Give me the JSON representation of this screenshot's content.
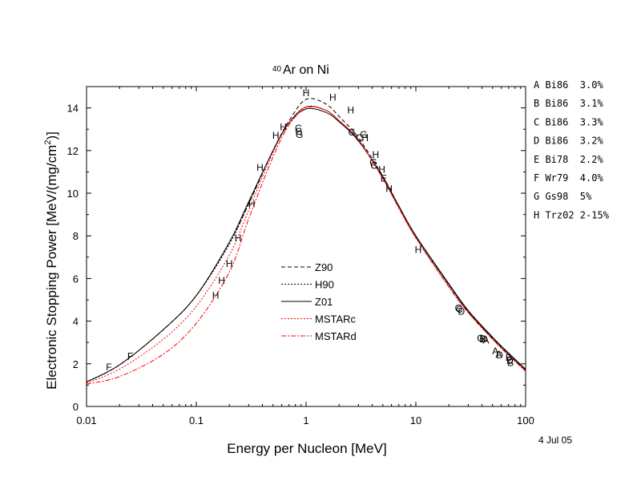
{
  "chart_data": {
    "type": "line",
    "title_sup": "40",
    "title_main": "Ar on Ni",
    "xlabel": "Energy per Nucleon [MeV]",
    "ylabel_main": "Electronic Stopping Power [MeV/(mg/cm",
    "ylabel_sup": "2",
    "ylabel_end": ")]",
    "date": "4 Jul 05",
    "xscale": "log",
    "xlim": [
      0.01,
      100
    ],
    "ylim": [
      0,
      15
    ],
    "x_ticks": [
      0.01,
      0.1,
      1,
      10,
      100
    ],
    "x_tick_labels": [
      "0.01",
      "0.1",
      "1",
      "10",
      "100"
    ],
    "y_ticks": [
      0,
      2,
      4,
      6,
      8,
      10,
      12,
      14
    ],
    "y_tick_labels": [
      "0",
      "2",
      "4",
      "6",
      "8",
      "10",
      "12",
      "14"
    ],
    "legend_position": "center-left",
    "series": [
      {
        "name": "Z90",
        "color": "#000000",
        "dash": "5,3",
        "points": [
          [
            0.01,
            1.15
          ],
          [
            0.02,
            1.95
          ],
          [
            0.05,
            3.6
          ],
          [
            0.1,
            5.2
          ],
          [
            0.2,
            7.7
          ],
          [
            0.3,
            9.5
          ],
          [
            0.5,
            12.0
          ],
          [
            0.7,
            13.4
          ],
          [
            1.0,
            14.4
          ],
          [
            1.5,
            14.2
          ],
          [
            2.0,
            13.6
          ],
          [
            3.0,
            12.6
          ],
          [
            5.0,
            10.8
          ],
          [
            7.0,
            9.4
          ],
          [
            10.0,
            8.0
          ],
          [
            20.0,
            5.7
          ],
          [
            30.0,
            4.45
          ],
          [
            50.0,
            3.2
          ],
          [
            70.0,
            2.45
          ],
          [
            100.0,
            1.7
          ]
        ]
      },
      {
        "name": "H90",
        "color": "#000000",
        "dash": "2,2",
        "points": [
          [
            0.01,
            1.15
          ],
          [
            0.02,
            1.95
          ],
          [
            0.05,
            3.6
          ],
          [
            0.1,
            5.2
          ],
          [
            0.2,
            7.6
          ],
          [
            0.3,
            9.5
          ],
          [
            0.5,
            12.0
          ],
          [
            0.7,
            13.3
          ],
          [
            1.0,
            14.05
          ],
          [
            1.5,
            13.9
          ],
          [
            2.0,
            13.4
          ],
          [
            3.0,
            12.5
          ],
          [
            5.0,
            10.7
          ],
          [
            7.0,
            9.35
          ],
          [
            10.0,
            7.95
          ],
          [
            20.0,
            5.7
          ],
          [
            30.0,
            4.45
          ],
          [
            50.0,
            3.2
          ],
          [
            70.0,
            2.45
          ],
          [
            100.0,
            1.7
          ]
        ]
      },
      {
        "name": "Z01",
        "color": "#000000",
        "dash": "",
        "points": [
          [
            0.01,
            1.15
          ],
          [
            0.02,
            1.95
          ],
          [
            0.05,
            3.6
          ],
          [
            0.1,
            5.2
          ],
          [
            0.2,
            7.7
          ],
          [
            0.3,
            9.6
          ],
          [
            0.5,
            12.0
          ],
          [
            0.7,
            13.3
          ],
          [
            1.0,
            13.95
          ],
          [
            1.5,
            13.8
          ],
          [
            2.0,
            13.35
          ],
          [
            3.0,
            12.45
          ],
          [
            5.0,
            10.75
          ],
          [
            7.0,
            9.4
          ],
          [
            10.0,
            8.0
          ],
          [
            20.0,
            5.75
          ],
          [
            30.0,
            4.5
          ],
          [
            50.0,
            3.25
          ],
          [
            70.0,
            2.5
          ],
          [
            100.0,
            1.75
          ]
        ]
      },
      {
        "name": "MSTARc",
        "color": "#ff0000",
        "dash": "2,2",
        "points": [
          [
            0.01,
            1.1
          ],
          [
            0.02,
            1.75
          ],
          [
            0.05,
            3.15
          ],
          [
            0.1,
            4.7
          ],
          [
            0.2,
            7.1
          ],
          [
            0.3,
            9.2
          ],
          [
            0.5,
            11.9
          ],
          [
            0.7,
            13.3
          ],
          [
            1.0,
            14.05
          ],
          [
            1.5,
            13.9
          ],
          [
            2.0,
            13.4
          ],
          [
            3.0,
            12.5
          ],
          [
            5.0,
            10.7
          ],
          [
            7.0,
            9.3
          ],
          [
            10.0,
            7.9
          ],
          [
            20.0,
            5.6
          ],
          [
            30.0,
            4.4
          ],
          [
            50.0,
            3.15
          ],
          [
            70.0,
            2.4
          ],
          [
            100.0,
            1.65
          ]
        ]
      },
      {
        "name": "MSTARd",
        "color": "#ff0000",
        "dash": "6,2,2,2",
        "points": [
          [
            0.01,
            1.05
          ],
          [
            0.02,
            1.4
          ],
          [
            0.05,
            2.45
          ],
          [
            0.1,
            3.9
          ],
          [
            0.2,
            6.3
          ],
          [
            0.3,
            8.8
          ],
          [
            0.5,
            11.7
          ],
          [
            0.7,
            13.2
          ],
          [
            1.0,
            14.0
          ],
          [
            1.5,
            13.9
          ],
          [
            2.0,
            13.4
          ],
          [
            3.0,
            12.5
          ],
          [
            5.0,
            10.7
          ],
          [
            7.0,
            9.3
          ],
          [
            10.0,
            7.9
          ],
          [
            20.0,
            5.6
          ],
          [
            30.0,
            4.4
          ],
          [
            50.0,
            3.15
          ],
          [
            70.0,
            2.4
          ],
          [
            100.0,
            1.65
          ]
        ]
      }
    ],
    "markers": [
      {
        "label": "F",
        "x": 0.016,
        "y": 1.85
      },
      {
        "label": "F",
        "x": 0.025,
        "y": 2.35
      },
      {
        "label": "H",
        "x": 0.15,
        "y": 5.2
      },
      {
        "label": "H",
        "x": 0.17,
        "y": 5.9
      },
      {
        "label": "H",
        "x": 0.2,
        "y": 6.7
      },
      {
        "label": "H",
        "x": 0.24,
        "y": 7.9
      },
      {
        "label": "H",
        "x": 0.32,
        "y": 9.5
      },
      {
        "label": "H",
        "x": 0.38,
        "y": 11.2
      },
      {
        "label": "H",
        "x": 0.53,
        "y": 12.7
      },
      {
        "label": "H",
        "x": 0.62,
        "y": 13.1
      },
      {
        "label": "C",
        "x": 0.85,
        "y": 13.05
      },
      {
        "label": "G",
        "x": 0.86,
        "y": 12.9
      },
      {
        "label": "G",
        "x": 0.87,
        "y": 12.75
      },
      {
        "label": "H",
        "x": 1.0,
        "y": 14.7
      },
      {
        "label": "H",
        "x": 1.75,
        "y": 14.5
      },
      {
        "label": "H",
        "x": 2.55,
        "y": 13.9
      },
      {
        "label": "G",
        "x": 2.62,
        "y": 12.85
      },
      {
        "label": "C",
        "x": 3.05,
        "y": 12.6
      },
      {
        "label": "G",
        "x": 3.35,
        "y": 12.75
      },
      {
        "label": "H",
        "x": 3.45,
        "y": 12.6
      },
      {
        "label": "H",
        "x": 4.3,
        "y": 11.8
      },
      {
        "label": "G",
        "x": 4.1,
        "y": 11.45
      },
      {
        "label": "C",
        "x": 4.15,
        "y": 11.3
      },
      {
        "label": "H",
        "x": 4.9,
        "y": 11.1
      },
      {
        "label": "E",
        "x": 5.1,
        "y": 10.7
      },
      {
        "label": "H",
        "x": 5.7,
        "y": 10.2
      },
      {
        "label": "H",
        "x": 10.5,
        "y": 7.35
      },
      {
        "label": "G",
        "x": 24.5,
        "y": 4.6
      },
      {
        "label": "C",
        "x": 25.0,
        "y": 4.55
      },
      {
        "label": "D",
        "x": 26.0,
        "y": 4.45
      },
      {
        "label": "G",
        "x": 39.0,
        "y": 3.2
      },
      {
        "label": "B",
        "x": 40.5,
        "y": 3.15
      },
      {
        "label": "D",
        "x": 42.0,
        "y": 3.15
      },
      {
        "label": "A",
        "x": 43.5,
        "y": 3.1
      },
      {
        "label": "A",
        "x": 53.0,
        "y": 2.6
      },
      {
        "label": "A",
        "x": 57.0,
        "y": 2.45
      },
      {
        "label": "D",
        "x": 58.0,
        "y": 2.4
      },
      {
        "label": "B",
        "x": 70.0,
        "y": 2.3
      },
      {
        "label": "D",
        "x": 72.0,
        "y": 2.15
      },
      {
        "label": "B",
        "x": 73.0,
        "y": 2.05
      }
    ],
    "references": [
      "A Bi86  3.0%",
      "B Bi86  3.1%",
      "C Bi86  3.3%",
      "D Bi86  3.2%",
      "E Bi78  2.2%",
      "F Wr79  4.0%",
      "G Gs98  5%",
      "H Trz02 2-15%"
    ]
  }
}
